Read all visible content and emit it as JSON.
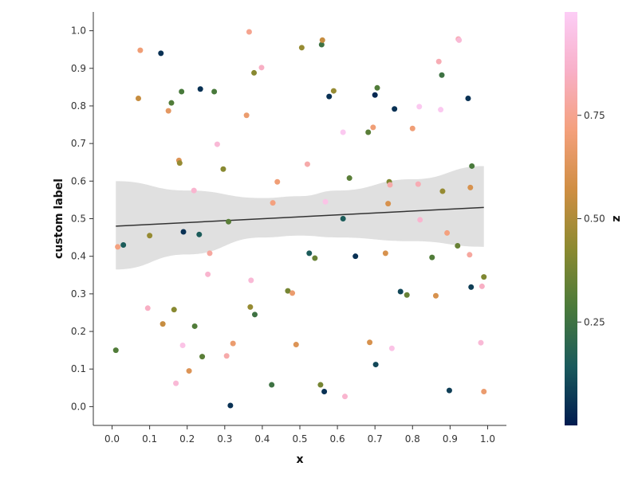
{
  "chart_data": {
    "type": "scatter",
    "xlabel": "x",
    "ylabel": "custom label",
    "xlim": [
      -0.05,
      1.05
    ],
    "ylim": [
      -0.05,
      1.05
    ],
    "xticks": [
      0.0,
      0.1,
      0.2,
      0.3,
      0.4,
      0.5,
      0.6,
      0.7,
      0.8,
      0.9,
      1.0
    ],
    "yticks": [
      0.0,
      0.1,
      0.2,
      0.3,
      0.4,
      0.5,
      0.6,
      0.7,
      0.8,
      0.9,
      1.0
    ],
    "tick_labels_x": [
      "0.0",
      "0.1",
      "0.2",
      "0.3",
      "0.4",
      "0.5",
      "0.6",
      "0.7",
      "0.8",
      "0.9",
      "1.0"
    ],
    "tick_labels_y": [
      "0.0",
      "0.1",
      "0.2",
      "0.3",
      "0.4",
      "0.5",
      "0.6",
      "0.7",
      "0.8",
      "0.9",
      "1.0"
    ],
    "grid": false,
    "regression": {
      "x": [
        0.01,
        0.99
      ],
      "y": [
        0.48,
        0.53
      ],
      "color": "#333333",
      "ci_upper": [
        [
          0.01,
          0.6
        ],
        [
          0.2,
          0.575
        ],
        [
          0.4,
          0.555
        ],
        [
          0.5,
          0.56
        ],
        [
          0.6,
          0.575
        ],
        [
          0.8,
          0.605
        ],
        [
          0.99,
          0.64
        ]
      ],
      "ci_lower": [
        [
          0.01,
          0.365
        ],
        [
          0.2,
          0.405
        ],
        [
          0.4,
          0.45
        ],
        [
          0.5,
          0.455
        ],
        [
          0.6,
          0.45
        ],
        [
          0.8,
          0.44
        ],
        [
          0.99,
          0.425
        ]
      ],
      "band_color": "#e0e0e0"
    },
    "colorbar": {
      "label": "z",
      "min": 0.0,
      "max": 1.0,
      "ticks": [
        0.25,
        0.5,
        0.75
      ],
      "tick_labels": [
        "0.25",
        "0.50",
        "0.75"
      ],
      "colors": [
        "#001b4f",
        "#1a5a5c",
        "#4a7a3a",
        "#8c8a30",
        "#d08e43",
        "#f4a07c",
        "#f8b0c8",
        "#fccdf6"
      ]
    },
    "points": [
      {
        "x": 0.01,
        "y": 0.15,
        "z": 0.3
      },
      {
        "x": 0.015,
        "y": 0.425,
        "z": 0.72
      },
      {
        "x": 0.03,
        "y": 0.43,
        "z": 0.15
      },
      {
        "x": 0.07,
        "y": 0.82,
        "z": 0.55
      },
      {
        "x": 0.075,
        "y": 0.948,
        "z": 0.7
      },
      {
        "x": 0.095,
        "y": 0.262,
        "z": 0.85
      },
      {
        "x": 0.1,
        "y": 0.455,
        "z": 0.45
      },
      {
        "x": 0.13,
        "y": 0.94,
        "z": 0.05
      },
      {
        "x": 0.135,
        "y": 0.22,
        "z": 0.55
      },
      {
        "x": 0.15,
        "y": 0.787,
        "z": 0.65
      },
      {
        "x": 0.158,
        "y": 0.808,
        "z": 0.3
      },
      {
        "x": 0.165,
        "y": 0.258,
        "z": 0.42
      },
      {
        "x": 0.17,
        "y": 0.062,
        "z": 0.9
      },
      {
        "x": 0.178,
        "y": 0.655,
        "z": 0.62
      },
      {
        "x": 0.18,
        "y": 0.648,
        "z": 0.45
      },
      {
        "x": 0.185,
        "y": 0.838,
        "z": 0.28
      },
      {
        "x": 0.188,
        "y": 0.163,
        "z": 0.95
      },
      {
        "x": 0.19,
        "y": 0.465,
        "z": 0.05
      },
      {
        "x": 0.205,
        "y": 0.095,
        "z": 0.62
      },
      {
        "x": 0.218,
        "y": 0.575,
        "z": 0.88
      },
      {
        "x": 0.22,
        "y": 0.214,
        "z": 0.3
      },
      {
        "x": 0.232,
        "y": 0.458,
        "z": 0.15
      },
      {
        "x": 0.235,
        "y": 0.845,
        "z": 0.05
      },
      {
        "x": 0.24,
        "y": 0.133,
        "z": 0.32
      },
      {
        "x": 0.255,
        "y": 0.352,
        "z": 0.88
      },
      {
        "x": 0.26,
        "y": 0.408,
        "z": 0.78
      },
      {
        "x": 0.272,
        "y": 0.838,
        "z": 0.28
      },
      {
        "x": 0.28,
        "y": 0.698,
        "z": 0.9
      },
      {
        "x": 0.296,
        "y": 0.632,
        "z": 0.42
      },
      {
        "x": 0.305,
        "y": 0.135,
        "z": 0.8
      },
      {
        "x": 0.31,
        "y": 0.492,
        "z": 0.32
      },
      {
        "x": 0.315,
        "y": 0.003,
        "z": 0.05
      },
      {
        "x": 0.322,
        "y": 0.168,
        "z": 0.68
      },
      {
        "x": 0.358,
        "y": 0.775,
        "z": 0.68
      },
      {
        "x": 0.365,
        "y": 0.997,
        "z": 0.75
      },
      {
        "x": 0.368,
        "y": 0.265,
        "z": 0.45
      },
      {
        "x": 0.37,
        "y": 0.336,
        "z": 0.9
      },
      {
        "x": 0.378,
        "y": 0.888,
        "z": 0.42
      },
      {
        "x": 0.38,
        "y": 0.245,
        "z": 0.25
      },
      {
        "x": 0.398,
        "y": 0.902,
        "z": 0.85
      },
      {
        "x": 0.425,
        "y": 0.058,
        "z": 0.25
      },
      {
        "x": 0.428,
        "y": 0.542,
        "z": 0.72
      },
      {
        "x": 0.44,
        "y": 0.598,
        "z": 0.7
      },
      {
        "x": 0.468,
        "y": 0.308,
        "z": 0.38
      },
      {
        "x": 0.48,
        "y": 0.302,
        "z": 0.68
      },
      {
        "x": 0.49,
        "y": 0.165,
        "z": 0.62
      },
      {
        "x": 0.505,
        "y": 0.955,
        "z": 0.45
      },
      {
        "x": 0.52,
        "y": 0.645,
        "z": 0.8
      },
      {
        "x": 0.525,
        "y": 0.408,
        "z": 0.15
      },
      {
        "x": 0.54,
        "y": 0.395,
        "z": 0.35
      },
      {
        "x": 0.555,
        "y": 0.058,
        "z": 0.38
      },
      {
        "x": 0.558,
        "y": 0.963,
        "z": 0.25
      },
      {
        "x": 0.56,
        "y": 0.975,
        "z": 0.55
      },
      {
        "x": 0.565,
        "y": 0.04,
        "z": 0.05
      },
      {
        "x": 0.568,
        "y": 0.545,
        "z": 0.95
      },
      {
        "x": 0.578,
        "y": 0.825,
        "z": 0.05
      },
      {
        "x": 0.59,
        "y": 0.84,
        "z": 0.45
      },
      {
        "x": 0.615,
        "y": 0.73,
        "z": 0.98
      },
      {
        "x": 0.615,
        "y": 0.5,
        "z": 0.15
      },
      {
        "x": 0.62,
        "y": 0.027,
        "z": 0.88
      },
      {
        "x": 0.632,
        "y": 0.608,
        "z": 0.32
      },
      {
        "x": 0.648,
        "y": 0.4,
        "z": 0.05
      },
      {
        "x": 0.682,
        "y": 0.73,
        "z": 0.32
      },
      {
        "x": 0.686,
        "y": 0.171,
        "z": 0.6
      },
      {
        "x": 0.695,
        "y": 0.743,
        "z": 0.7
      },
      {
        "x": 0.7,
        "y": 0.829,
        "z": 0.03
      },
      {
        "x": 0.702,
        "y": 0.112,
        "z": 0.1
      },
      {
        "x": 0.706,
        "y": 0.848,
        "z": 0.3
      },
      {
        "x": 0.728,
        "y": 0.408,
        "z": 0.6
      },
      {
        "x": 0.735,
        "y": 0.54,
        "z": 0.6
      },
      {
        "x": 0.738,
        "y": 0.598,
        "z": 0.4
      },
      {
        "x": 0.74,
        "y": 0.59,
        "z": 0.8
      },
      {
        "x": 0.745,
        "y": 0.155,
        "z": 0.95
      },
      {
        "x": 0.752,
        "y": 0.792,
        "z": 0.05
      },
      {
        "x": 0.768,
        "y": 0.306,
        "z": 0.1
      },
      {
        "x": 0.785,
        "y": 0.297,
        "z": 0.35
      },
      {
        "x": 0.8,
        "y": 0.74,
        "z": 0.7
      },
      {
        "x": 0.815,
        "y": 0.592,
        "z": 0.82
      },
      {
        "x": 0.818,
        "y": 0.798,
        "z": 0.98
      },
      {
        "x": 0.82,
        "y": 0.497,
        "z": 0.88
      },
      {
        "x": 0.852,
        "y": 0.397,
        "z": 0.3
      },
      {
        "x": 0.862,
        "y": 0.295,
        "z": 0.6
      },
      {
        "x": 0.87,
        "y": 0.918,
        "z": 0.82
      },
      {
        "x": 0.875,
        "y": 0.79,
        "z": 0.98
      },
      {
        "x": 0.878,
        "y": 0.882,
        "z": 0.25
      },
      {
        "x": 0.88,
        "y": 0.573,
        "z": 0.45
      },
      {
        "x": 0.892,
        "y": 0.462,
        "z": 0.72
      },
      {
        "x": 0.898,
        "y": 0.043,
        "z": 0.08
      },
      {
        "x": 0.92,
        "y": 0.428,
        "z": 0.35
      },
      {
        "x": 0.922,
        "y": 0.978,
        "z": 0.82
      },
      {
        "x": 0.924,
        "y": 0.975,
        "z": 0.9
      },
      {
        "x": 0.948,
        "y": 0.82,
        "z": 0.05
      },
      {
        "x": 0.952,
        "y": 0.404,
        "z": 0.78
      },
      {
        "x": 0.954,
        "y": 0.583,
        "z": 0.6
      },
      {
        "x": 0.956,
        "y": 0.318,
        "z": 0.08
      },
      {
        "x": 0.958,
        "y": 0.64,
        "z": 0.28
      },
      {
        "x": 0.982,
        "y": 0.17,
        "z": 0.9
      },
      {
        "x": 0.985,
        "y": 0.32,
        "z": 0.85
      },
      {
        "x": 0.99,
        "y": 0.04,
        "z": 0.68
      },
      {
        "x": 0.99,
        "y": 0.345,
        "z": 0.4
      }
    ]
  }
}
